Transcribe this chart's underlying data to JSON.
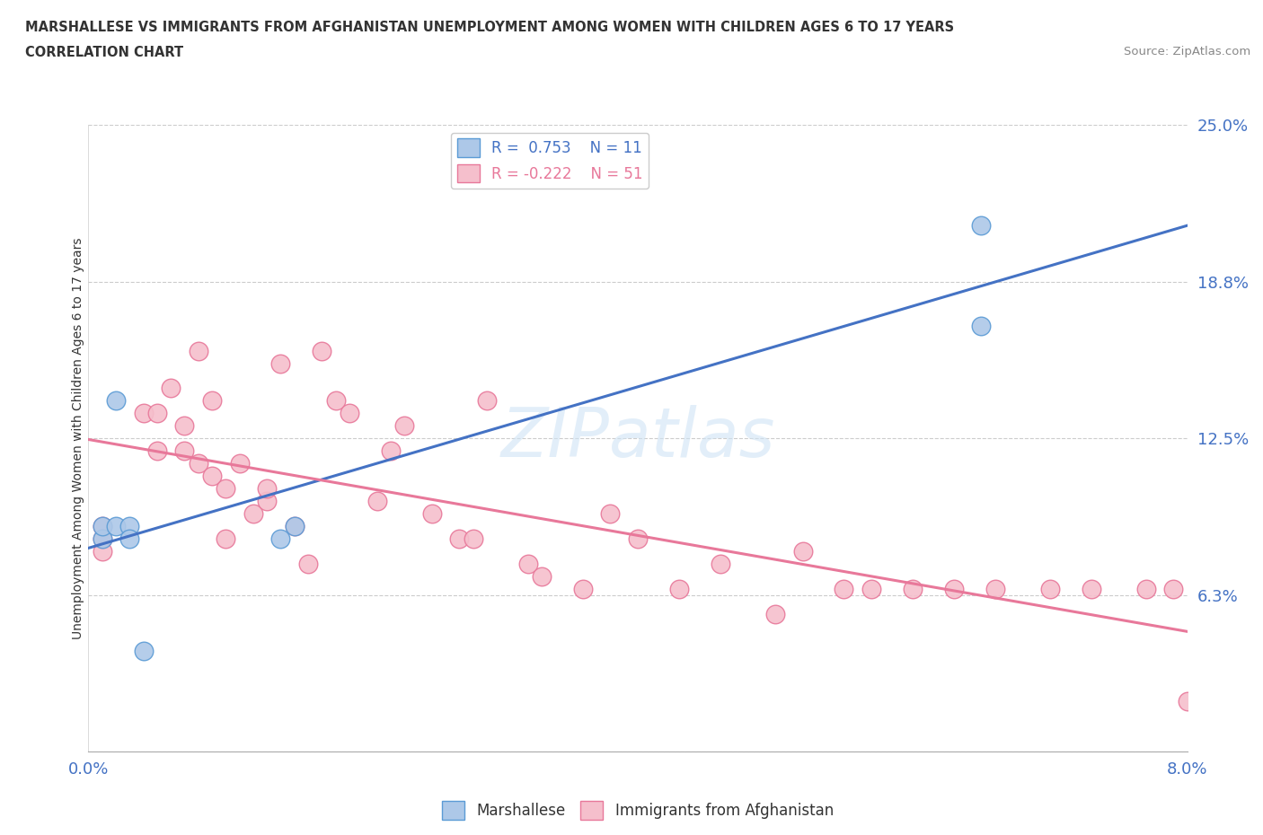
{
  "title1": "MARSHALLESE VS IMMIGRANTS FROM AFGHANISTAN UNEMPLOYMENT AMONG WOMEN WITH CHILDREN AGES 6 TO 17 YEARS",
  "title2": "CORRELATION CHART",
  "source": "Source: ZipAtlas.com",
  "ylabel": "Unemployment Among Women with Children Ages 6 to 17 years",
  "xlim": [
    0.0,
    0.08
  ],
  "ylim": [
    0.0,
    0.25
  ],
  "xticks": [
    0.0,
    0.01,
    0.02,
    0.03,
    0.04,
    0.05,
    0.06,
    0.07,
    0.08
  ],
  "xticklabels": [
    "0.0%",
    "",
    "",
    "",
    "",
    "",
    "",
    "",
    "8.0%"
  ],
  "ytick_positions": [
    0.0,
    0.0625,
    0.125,
    0.1875,
    0.25
  ],
  "yticklabels": [
    "",
    "6.3%",
    "12.5%",
    "18.8%",
    "25.0%"
  ],
  "marshallese_x": [
    0.001,
    0.001,
    0.002,
    0.002,
    0.003,
    0.003,
    0.004,
    0.014,
    0.015,
    0.065,
    0.065
  ],
  "marshallese_y": [
    0.085,
    0.09,
    0.14,
    0.09,
    0.09,
    0.085,
    0.04,
    0.085,
    0.09,
    0.17,
    0.21
  ],
  "afghanistan_x": [
    0.001,
    0.001,
    0.001,
    0.004,
    0.005,
    0.005,
    0.006,
    0.007,
    0.007,
    0.008,
    0.008,
    0.009,
    0.009,
    0.01,
    0.01,
    0.011,
    0.012,
    0.013,
    0.013,
    0.014,
    0.015,
    0.016,
    0.017,
    0.018,
    0.019,
    0.021,
    0.022,
    0.023,
    0.025,
    0.027,
    0.028,
    0.029,
    0.032,
    0.033,
    0.036,
    0.038,
    0.04,
    0.043,
    0.046,
    0.05,
    0.052,
    0.055,
    0.057,
    0.06,
    0.063,
    0.066,
    0.07,
    0.073,
    0.077,
    0.079,
    0.08
  ],
  "afghanistan_y": [
    0.09,
    0.085,
    0.08,
    0.135,
    0.135,
    0.12,
    0.145,
    0.13,
    0.12,
    0.16,
    0.115,
    0.14,
    0.11,
    0.085,
    0.105,
    0.115,
    0.095,
    0.1,
    0.105,
    0.155,
    0.09,
    0.075,
    0.16,
    0.14,
    0.135,
    0.1,
    0.12,
    0.13,
    0.095,
    0.085,
    0.085,
    0.14,
    0.075,
    0.07,
    0.065,
    0.095,
    0.085,
    0.065,
    0.075,
    0.055,
    0.08,
    0.065,
    0.065,
    0.065,
    0.065,
    0.065,
    0.065,
    0.065,
    0.065,
    0.065,
    0.02
  ],
  "marshallese_color": "#adc8e8",
  "afghanistan_color": "#f5bfcc",
  "marshallese_edge_color": "#5b9bd5",
  "afghanistan_edge_color": "#e8789a",
  "marshallese_line_color": "#4472c4",
  "afghanistan_line_color": "#e8789a",
  "legend_r1": "R =  0.753",
  "legend_n1": "N = 11",
  "legend_r2": "R = -0.222",
  "legend_n2": "N = 51",
  "watermark": "ZIPatlas",
  "dpi": 100,
  "figsize": [
    14.06,
    9.3
  ]
}
